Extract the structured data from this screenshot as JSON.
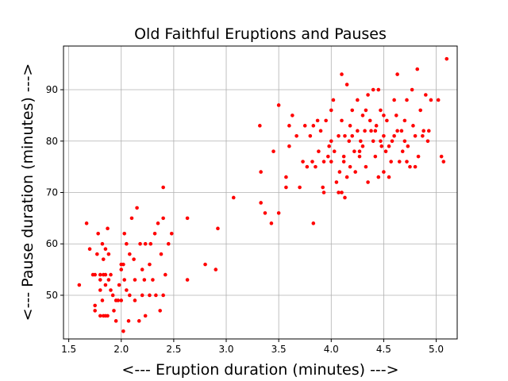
{
  "chart_data": {
    "type": "scatter",
    "title": "Old Faithful Eruptions and Pauses",
    "xlabel": "<--- Eruption duration (minutes) --->",
    "ylabel": "<--- Pause duration (minutes) --->",
    "xlim": [
      1.45,
      5.2
    ],
    "ylim": [
      41.5,
      98.5
    ],
    "xticks": [
      1.5,
      2.0,
      2.5,
      3.0,
      3.5,
      4.0,
      4.5,
      5.0
    ],
    "xtick_labels": [
      "1.5",
      "2.0",
      "2.5",
      "3.0",
      "3.5",
      "4.0",
      "4.5",
      "5.0"
    ],
    "yticks": [
      50,
      60,
      70,
      80,
      90
    ],
    "ytick_labels": [
      "50",
      "60",
      "70",
      "80",
      "90"
    ],
    "grid": true,
    "marker_color": "#ff0000",
    "series": [
      {
        "points": [
          [
            1.6,
            52
          ],
          [
            1.67,
            64
          ],
          [
            1.7,
            59
          ],
          [
            1.73,
            54
          ],
          [
            1.75,
            47
          ],
          [
            1.75,
            48
          ],
          [
            1.75,
            54
          ],
          [
            1.77,
            58
          ],
          [
            1.78,
            62
          ],
          [
            1.8,
            46
          ],
          [
            1.8,
            51
          ],
          [
            1.8,
            53
          ],
          [
            1.8,
            54
          ],
          [
            1.82,
            49
          ],
          [
            1.82,
            60
          ],
          [
            1.83,
            46
          ],
          [
            1.83,
            54
          ],
          [
            1.83,
            57
          ],
          [
            1.85,
            46
          ],
          [
            1.85,
            52
          ],
          [
            1.85,
            54
          ],
          [
            1.85,
            59
          ],
          [
            1.87,
            63
          ],
          [
            1.87,
            46
          ],
          [
            1.88,
            53
          ],
          [
            1.88,
            58
          ],
          [
            1.9,
            51
          ],
          [
            1.9,
            54
          ],
          [
            1.92,
            50
          ],
          [
            1.93,
            47
          ],
          [
            1.95,
            49
          ],
          [
            1.95,
            45
          ],
          [
            1.97,
            49
          ],
          [
            1.98,
            52
          ],
          [
            2.0,
            49
          ],
          [
            2.0,
            55
          ],
          [
            2.0,
            56
          ],
          [
            2.02,
            43
          ],
          [
            2.02,
            56
          ],
          [
            2.03,
            53
          ],
          [
            2.03,
            62
          ],
          [
            2.05,
            51
          ],
          [
            2.05,
            60
          ],
          [
            2.07,
            45
          ],
          [
            2.08,
            50
          ],
          [
            2.08,
            58
          ],
          [
            2.1,
            65
          ],
          [
            2.12,
            57
          ],
          [
            2.13,
            49
          ],
          [
            2.13,
            53
          ],
          [
            2.15,
            67
          ],
          [
            2.17,
            45
          ],
          [
            2.18,
            60
          ],
          [
            2.2,
            55
          ],
          [
            2.2,
            50
          ],
          [
            2.22,
            53
          ],
          [
            2.23,
            46
          ],
          [
            2.23,
            60
          ],
          [
            2.27,
            50
          ],
          [
            2.27,
            56
          ],
          [
            2.28,
            60
          ],
          [
            2.3,
            53
          ],
          [
            2.32,
            62
          ],
          [
            2.33,
            50
          ],
          [
            2.35,
            64
          ],
          [
            2.37,
            47
          ],
          [
            2.38,
            58
          ],
          [
            2.4,
            71
          ],
          [
            2.4,
            50
          ],
          [
            2.4,
            65
          ],
          [
            2.42,
            54
          ],
          [
            2.45,
            60
          ],
          [
            2.48,
            62
          ],
          [
            2.63,
            53
          ],
          [
            2.63,
            65
          ],
          [
            2.8,
            56
          ],
          [
            2.9,
            55
          ],
          [
            2.92,
            63
          ],
          [
            3.07,
            69
          ],
          [
            3.32,
            83
          ],
          [
            3.33,
            68
          ],
          [
            3.33,
            74
          ],
          [
            3.37,
            66
          ],
          [
            3.43,
            64
          ],
          [
            3.45,
            78
          ],
          [
            3.5,
            66
          ],
          [
            3.5,
            87
          ],
          [
            3.57,
            71
          ],
          [
            3.57,
            73
          ],
          [
            3.6,
            83
          ],
          [
            3.6,
            79
          ],
          [
            3.63,
            85
          ],
          [
            3.67,
            81
          ],
          [
            3.7,
            71
          ],
          [
            3.73,
            76
          ],
          [
            3.75,
            83
          ],
          [
            3.77,
            75
          ],
          [
            3.8,
            81
          ],
          [
            3.82,
            76
          ],
          [
            3.83,
            83
          ],
          [
            3.83,
            64
          ],
          [
            3.85,
            75
          ],
          [
            3.87,
            84
          ],
          [
            3.88,
            78
          ],
          [
            3.9,
            82
          ],
          [
            3.92,
            71
          ],
          [
            3.93,
            70
          ],
          [
            3.93,
            76
          ],
          [
            3.95,
            84
          ],
          [
            3.97,
            77
          ],
          [
            3.98,
            79
          ],
          [
            4.0,
            76
          ],
          [
            4.0,
            80
          ],
          [
            4.0,
            86
          ],
          [
            4.02,
            88
          ],
          [
            4.03,
            78
          ],
          [
            4.05,
            72
          ],
          [
            4.07,
            81
          ],
          [
            4.07,
            70
          ],
          [
            4.08,
            74
          ],
          [
            4.1,
            93
          ],
          [
            4.1,
            84
          ],
          [
            4.12,
            77
          ],
          [
            4.12,
            76
          ],
          [
            4.13,
            81
          ],
          [
            4.15,
            73
          ],
          [
            4.15,
            91
          ],
          [
            4.17,
            80
          ],
          [
            4.18,
            75
          ],
          [
            4.2,
            86
          ],
          [
            4.2,
            81
          ],
          [
            4.22,
            78
          ],
          [
            4.23,
            74
          ],
          [
            4.25,
            88
          ],
          [
            4.25,
            82
          ],
          [
            4.27,
            77
          ],
          [
            4.28,
            80
          ],
          [
            4.3,
            79
          ],
          [
            4.3,
            85
          ],
          [
            4.32,
            82
          ],
          [
            4.33,
            75
          ],
          [
            4.35,
            89
          ],
          [
            4.35,
            72
          ],
          [
            4.37,
            84
          ],
          [
            4.38,
            82
          ],
          [
            4.4,
            80
          ],
          [
            4.4,
            90
          ],
          [
            4.42,
            77
          ],
          [
            4.43,
            83
          ],
          [
            4.45,
            73
          ],
          [
            4.45,
            90
          ],
          [
            4.47,
            80
          ],
          [
            4.48,
            79
          ],
          [
            4.5,
            74
          ],
          [
            4.5,
            81
          ],
          [
            4.5,
            85
          ],
          [
            4.52,
            78
          ],
          [
            4.53,
            84
          ],
          [
            4.55,
            73
          ],
          [
            4.57,
            76
          ],
          [
            4.58,
            80
          ],
          [
            4.6,
            88
          ],
          [
            4.6,
            81
          ],
          [
            4.62,
            85
          ],
          [
            4.63,
            93
          ],
          [
            4.65,
            76
          ],
          [
            4.67,
            82
          ],
          [
            4.68,
            78
          ],
          [
            4.7,
            84
          ],
          [
            4.7,
            80
          ],
          [
            4.72,
            88
          ],
          [
            4.73,
            79
          ],
          [
            4.75,
            75
          ],
          [
            4.77,
            90
          ],
          [
            4.78,
            83
          ],
          [
            4.8,
            81
          ],
          [
            4.8,
            75
          ],
          [
            4.82,
            94
          ],
          [
            4.83,
            77
          ],
          [
            4.85,
            86
          ],
          [
            4.87,
            81
          ],
          [
            4.88,
            82
          ],
          [
            4.9,
            89
          ],
          [
            4.92,
            80
          ],
          [
            4.93,
            82
          ],
          [
            4.95,
            88
          ],
          [
            5.02,
            88
          ],
          [
            5.05,
            77
          ],
          [
            5.07,
            76
          ],
          [
            5.1,
            96
          ],
          [
            4.1,
            70
          ],
          [
            4.13,
            69
          ],
          [
            4.18,
            83
          ],
          [
            4.27,
            78
          ],
          [
            4.33,
            86
          ],
          [
            4.42,
            82
          ],
          [
            4.47,
            86
          ],
          [
            4.55,
            79
          ],
          [
            4.63,
            82
          ],
          [
            4.72,
            76
          ]
        ]
      }
    ]
  }
}
